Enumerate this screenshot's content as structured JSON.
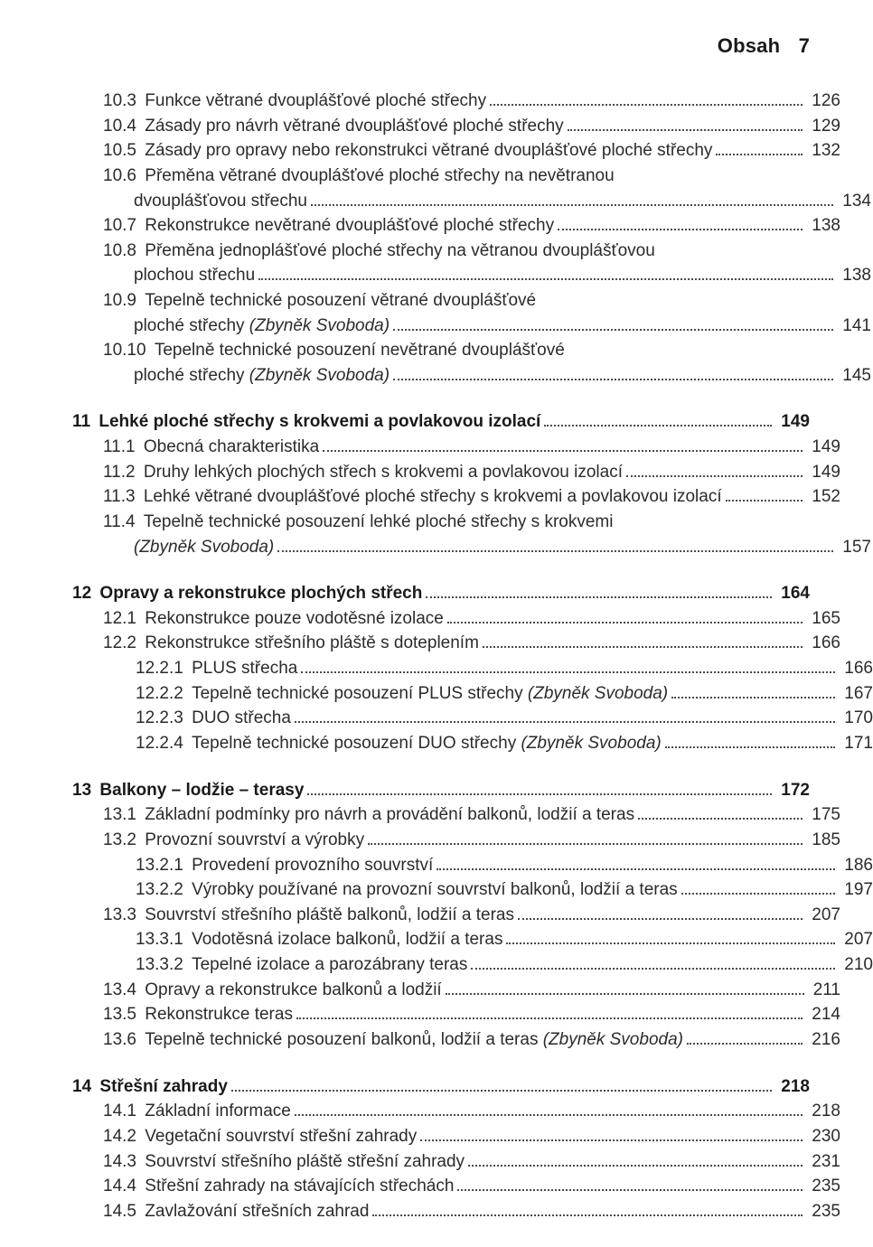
{
  "header": {
    "title": "Obsah",
    "page_number": "7"
  },
  "toc_blocks": [
    {
      "first": true,
      "entries": [
        {
          "indent": 1,
          "num": "10.3",
          "text": "Funkce větrané dvouplášťové ploché střechy",
          "page": "126"
        },
        {
          "indent": 1,
          "num": "10.4",
          "text": "Zásady pro návrh větrané dvouplášťové ploché střechy",
          "page": "129"
        },
        {
          "indent": 1,
          "num": "10.5",
          "text": "Zásady pro opravy nebo rekonstrukci větrané dvouplášťové ploché střechy",
          "page": "132"
        },
        {
          "indent": 1,
          "num": "10.6",
          "text": "Přeměna větrané dvouplášťové ploché střechy na nevětranou",
          "cont": "dvouplášťovou střechu",
          "page": "134"
        },
        {
          "indent": 1,
          "num": "10.7",
          "text": "Rekonstrukce nevětrané dvouplášťové ploché střechy",
          "page": "138"
        },
        {
          "indent": 1,
          "num": "10.8",
          "text": "Přeměna jednoplášťové ploché střechy na větranou dvouplášťovou",
          "cont": "plochou střechu",
          "page": "138"
        },
        {
          "indent": 1,
          "num": "10.9",
          "text": "Tepelně technické posouzení větrané dvouplášťové",
          "cont_html": "ploché střechy <span class=\"italic\">(Zbyněk Svoboda)</span>",
          "page": "141"
        },
        {
          "indent": 1,
          "num": "10.10",
          "text": "Tepelně technické posouzení nevětrané dvouplášťové",
          "cont_html": "ploché střechy <span class=\"italic\">(Zbyněk Svoboda)</span>",
          "page": "145"
        }
      ]
    },
    {
      "entries": [
        {
          "indent": 0,
          "bold": true,
          "num": "11",
          "text": "Lehké ploché střechy s krokvemi a povlakovou izolací",
          "page": "149"
        },
        {
          "indent": 1,
          "num": "11.1",
          "text": "Obecná charakteristika",
          "page": "149"
        },
        {
          "indent": 1,
          "num": "11.2",
          "text": "Druhy lehkých plochých střech s krokvemi a povlakovou izolací",
          "page": "149"
        },
        {
          "indent": 1,
          "num": "11.3",
          "text": "Lehké větrané dvouplášťové ploché střechy s krokvemi a povlakovou izolací",
          "page": "152"
        },
        {
          "indent": 1,
          "num": "11.4",
          "text": "Tepelně technické posouzení lehké ploché střechy s krokvemi",
          "cont_html": "<span class=\"italic\">(Zbyněk Svoboda)</span>",
          "page": "157"
        }
      ]
    },
    {
      "entries": [
        {
          "indent": 0,
          "bold": true,
          "num": "12",
          "text": "Opravy a rekonstrukce plochých střech",
          "page": "164"
        },
        {
          "indent": 1,
          "num": "12.1",
          "text": "Rekonstrukce pouze vodotěsné izolace",
          "page": "165"
        },
        {
          "indent": 1,
          "num": "12.2",
          "text": "Rekonstrukce střešního pláště s doteplením",
          "page": "166"
        },
        {
          "indent": 2,
          "num": "12.2.1",
          "text": "PLUS střecha",
          "page": "166"
        },
        {
          "indent": 2,
          "num": "12.2.2",
          "text_html": "Tepelně technické posouzení PLUS střechy <span class=\"italic\">(Zbyněk Svoboda)</span>",
          "page": "167"
        },
        {
          "indent": 2,
          "num": "12.2.3",
          "text": "DUO střecha",
          "page": "170"
        },
        {
          "indent": 2,
          "num": "12.2.4",
          "text_html": "Tepelně technické posouzení DUO střechy <span class=\"italic\">(Zbyněk Svoboda)</span>",
          "page": "171"
        }
      ]
    },
    {
      "entries": [
        {
          "indent": 0,
          "bold": true,
          "num": "13",
          "text": "Balkony – lodžie – terasy",
          "page": "172"
        },
        {
          "indent": 1,
          "num": "13.1",
          "text": "Základní podmínky pro návrh a provádění balkonů, lodžií a teras",
          "page": "175"
        },
        {
          "indent": 1,
          "num": "13.2",
          "text": "Provozní souvrství a výrobky",
          "page": "185"
        },
        {
          "indent": 2,
          "num": "13.2.1",
          "text": "Provedení provozního souvrství",
          "page": "186"
        },
        {
          "indent": 2,
          "num": "13.2.2",
          "text": "Výrobky používané na provozní souvrství balkonů, lodžií a teras",
          "page": "197"
        },
        {
          "indent": 1,
          "num": "13.3",
          "text": "Souvrství střešního pláště balkonů, lodžií a teras",
          "page": "207"
        },
        {
          "indent": 2,
          "num": "13.3.1",
          "text": "Vodotěsná izolace balkonů, lodžií a teras",
          "page": "207"
        },
        {
          "indent": 2,
          "num": "13.3.2",
          "text": "Tepelné izolace a parozábrany teras",
          "page": "210"
        },
        {
          "indent": 1,
          "num": "13.4",
          "text": "Opravy a rekonstrukce balkonů a lodžií",
          "page": "211"
        },
        {
          "indent": 1,
          "num": "13.5",
          "text": "Rekonstrukce teras",
          "page": "214"
        },
        {
          "indent": 1,
          "num": "13.6",
          "text_html": "Tepelně technické posouzení balkonů, lodžií a teras <span class=\"italic\">(Zbyněk Svoboda)</span>",
          "page": "216"
        }
      ]
    },
    {
      "entries": [
        {
          "indent": 0,
          "bold": true,
          "num": "14",
          "text": "Střešní zahrady",
          "page": "218"
        },
        {
          "indent": 1,
          "num": "14.1",
          "text": "Základní informace",
          "page": "218"
        },
        {
          "indent": 1,
          "num": "14.2",
          "text": "Vegetační souvrství střešní zahrady",
          "page": "230"
        },
        {
          "indent": 1,
          "num": "14.3",
          "text": "Souvrství střešního pláště střešní zahrady",
          "page": "231"
        },
        {
          "indent": 1,
          "num": "14.4",
          "text": "Střešní zahrady na stávajících střechách",
          "page": "235"
        },
        {
          "indent": 1,
          "num": "14.5",
          "text": "Zavlažování střešních zahrad",
          "page": "235"
        }
      ]
    }
  ]
}
